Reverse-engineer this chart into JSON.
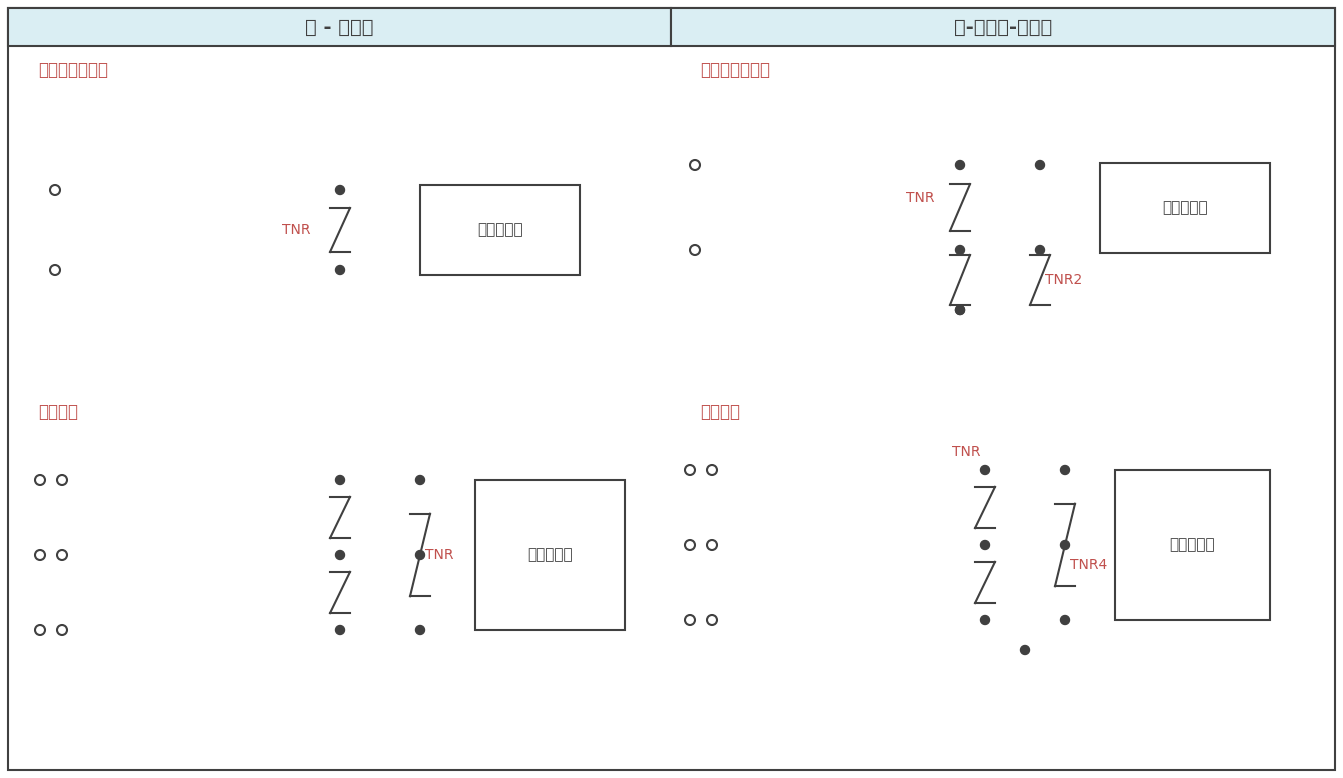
{
  "title_left": "线 - 线保护",
  "title_right": "线-线和线-地保护",
  "subtitle_tl": "直流或单相交流",
  "subtitle_tr": "直流或单相交流",
  "subtitle_bl": "三相交流",
  "subtitle_br": "三相交流",
  "label_protected": "需保护线路",
  "label_tnr": "TNR",
  "label_tnr2": "TNR2",
  "label_tnr4": "TNR4",
  "header_bg": "#daeef3",
  "line_color": "#404040",
  "text_color_label": "#404040",
  "text_color_subtitle": "#c0504d",
  "text_color_tnr": "#c0504d",
  "bg_color": "#ffffff",
  "fig_width": 13.43,
  "fig_height": 7.78
}
